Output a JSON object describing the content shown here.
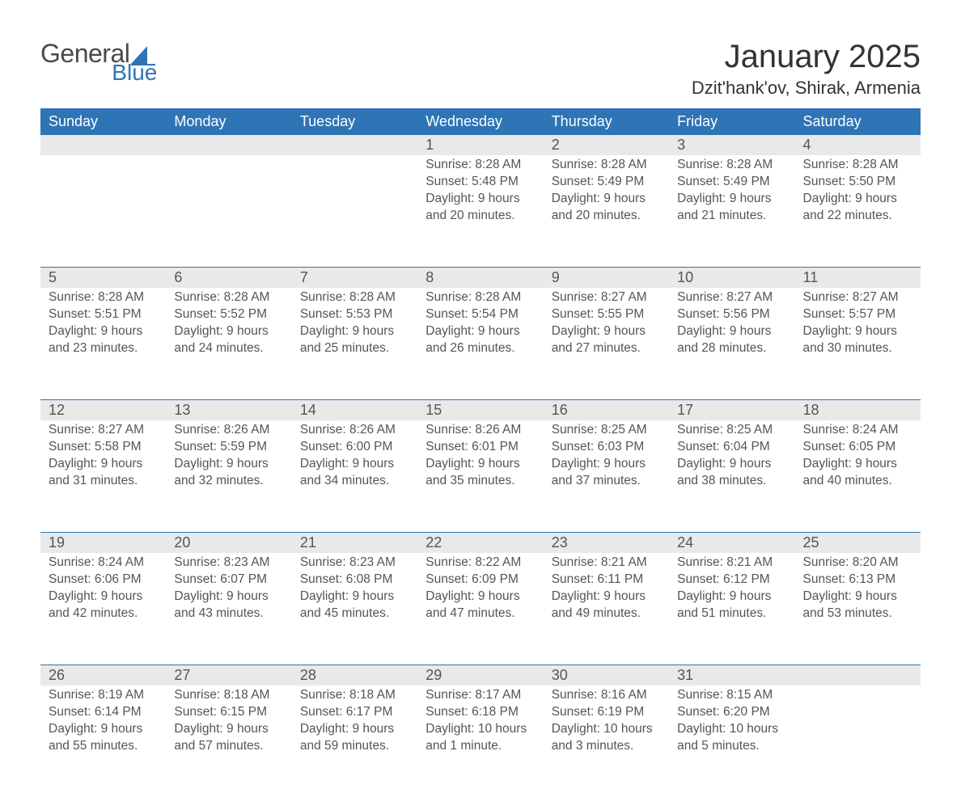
{
  "brand": {
    "text_general": "General",
    "text_blue": "Blue",
    "general_color": "#4a4a4a",
    "blue_color": "#2f74b5",
    "accent_shape_color": "#2f74b5"
  },
  "title": {
    "month_year": "January 2025",
    "location": "Dzit'hank'ov, Shirak, Armenia",
    "text_color": "#333333"
  },
  "colors": {
    "header_bg": "#2f74b5",
    "header_text": "#ffffff",
    "daynum_strip_bg": "#e9e9e9",
    "daynum_text": "#555555",
    "body_text": "#555555",
    "divider": "#2f74b5",
    "page_bg": "#ffffff"
  },
  "fontsizes": {
    "month_title_pt": 30,
    "location_pt": 17,
    "weekday_pt": 14,
    "daynum_pt": 14,
    "body_pt": 12
  },
  "calendar": {
    "type": "table",
    "weekdays": [
      "Sunday",
      "Monday",
      "Tuesday",
      "Wednesday",
      "Thursday",
      "Friday",
      "Saturday"
    ],
    "weeks": [
      [
        {
          "n": ""
        },
        {
          "n": ""
        },
        {
          "n": ""
        },
        {
          "n": "1",
          "sunrise": "Sunrise: 8:28 AM",
          "sunset": "Sunset: 5:48 PM",
          "day1": "Daylight: 9 hours",
          "day2": "and 20 minutes."
        },
        {
          "n": "2",
          "sunrise": "Sunrise: 8:28 AM",
          "sunset": "Sunset: 5:49 PM",
          "day1": "Daylight: 9 hours",
          "day2": "and 20 minutes."
        },
        {
          "n": "3",
          "sunrise": "Sunrise: 8:28 AM",
          "sunset": "Sunset: 5:49 PM",
          "day1": "Daylight: 9 hours",
          "day2": "and 21 minutes."
        },
        {
          "n": "4",
          "sunrise": "Sunrise: 8:28 AM",
          "sunset": "Sunset: 5:50 PM",
          "day1": "Daylight: 9 hours",
          "day2": "and 22 minutes."
        }
      ],
      [
        {
          "n": "5",
          "sunrise": "Sunrise: 8:28 AM",
          "sunset": "Sunset: 5:51 PM",
          "day1": "Daylight: 9 hours",
          "day2": "and 23 minutes."
        },
        {
          "n": "6",
          "sunrise": "Sunrise: 8:28 AM",
          "sunset": "Sunset: 5:52 PM",
          "day1": "Daylight: 9 hours",
          "day2": "and 24 minutes."
        },
        {
          "n": "7",
          "sunrise": "Sunrise: 8:28 AM",
          "sunset": "Sunset: 5:53 PM",
          "day1": "Daylight: 9 hours",
          "day2": "and 25 minutes."
        },
        {
          "n": "8",
          "sunrise": "Sunrise: 8:28 AM",
          "sunset": "Sunset: 5:54 PM",
          "day1": "Daylight: 9 hours",
          "day2": "and 26 minutes."
        },
        {
          "n": "9",
          "sunrise": "Sunrise: 8:27 AM",
          "sunset": "Sunset: 5:55 PM",
          "day1": "Daylight: 9 hours",
          "day2": "and 27 minutes."
        },
        {
          "n": "10",
          "sunrise": "Sunrise: 8:27 AM",
          "sunset": "Sunset: 5:56 PM",
          "day1": "Daylight: 9 hours",
          "day2": "and 28 minutes."
        },
        {
          "n": "11",
          "sunrise": "Sunrise: 8:27 AM",
          "sunset": "Sunset: 5:57 PM",
          "day1": "Daylight: 9 hours",
          "day2": "and 30 minutes."
        }
      ],
      [
        {
          "n": "12",
          "sunrise": "Sunrise: 8:27 AM",
          "sunset": "Sunset: 5:58 PM",
          "day1": "Daylight: 9 hours",
          "day2": "and 31 minutes."
        },
        {
          "n": "13",
          "sunrise": "Sunrise: 8:26 AM",
          "sunset": "Sunset: 5:59 PM",
          "day1": "Daylight: 9 hours",
          "day2": "and 32 minutes."
        },
        {
          "n": "14",
          "sunrise": "Sunrise: 8:26 AM",
          "sunset": "Sunset: 6:00 PM",
          "day1": "Daylight: 9 hours",
          "day2": "and 34 minutes."
        },
        {
          "n": "15",
          "sunrise": "Sunrise: 8:26 AM",
          "sunset": "Sunset: 6:01 PM",
          "day1": "Daylight: 9 hours",
          "day2": "and 35 minutes."
        },
        {
          "n": "16",
          "sunrise": "Sunrise: 8:25 AM",
          "sunset": "Sunset: 6:03 PM",
          "day1": "Daylight: 9 hours",
          "day2": "and 37 minutes."
        },
        {
          "n": "17",
          "sunrise": "Sunrise: 8:25 AM",
          "sunset": "Sunset: 6:04 PM",
          "day1": "Daylight: 9 hours",
          "day2": "and 38 minutes."
        },
        {
          "n": "18",
          "sunrise": "Sunrise: 8:24 AM",
          "sunset": "Sunset: 6:05 PM",
          "day1": "Daylight: 9 hours",
          "day2": "and 40 minutes."
        }
      ],
      [
        {
          "n": "19",
          "sunrise": "Sunrise: 8:24 AM",
          "sunset": "Sunset: 6:06 PM",
          "day1": "Daylight: 9 hours",
          "day2": "and 42 minutes."
        },
        {
          "n": "20",
          "sunrise": "Sunrise: 8:23 AM",
          "sunset": "Sunset: 6:07 PM",
          "day1": "Daylight: 9 hours",
          "day2": "and 43 minutes."
        },
        {
          "n": "21",
          "sunrise": "Sunrise: 8:23 AM",
          "sunset": "Sunset: 6:08 PM",
          "day1": "Daylight: 9 hours",
          "day2": "and 45 minutes."
        },
        {
          "n": "22",
          "sunrise": "Sunrise: 8:22 AM",
          "sunset": "Sunset: 6:09 PM",
          "day1": "Daylight: 9 hours",
          "day2": "and 47 minutes."
        },
        {
          "n": "23",
          "sunrise": "Sunrise: 8:21 AM",
          "sunset": "Sunset: 6:11 PM",
          "day1": "Daylight: 9 hours",
          "day2": "and 49 minutes."
        },
        {
          "n": "24",
          "sunrise": "Sunrise: 8:21 AM",
          "sunset": "Sunset: 6:12 PM",
          "day1": "Daylight: 9 hours",
          "day2": "and 51 minutes."
        },
        {
          "n": "25",
          "sunrise": "Sunrise: 8:20 AM",
          "sunset": "Sunset: 6:13 PM",
          "day1": "Daylight: 9 hours",
          "day2": "and 53 minutes."
        }
      ],
      [
        {
          "n": "26",
          "sunrise": "Sunrise: 8:19 AM",
          "sunset": "Sunset: 6:14 PM",
          "day1": "Daylight: 9 hours",
          "day2": "and 55 minutes."
        },
        {
          "n": "27",
          "sunrise": "Sunrise: 8:18 AM",
          "sunset": "Sunset: 6:15 PM",
          "day1": "Daylight: 9 hours",
          "day2": "and 57 minutes."
        },
        {
          "n": "28",
          "sunrise": "Sunrise: 8:18 AM",
          "sunset": "Sunset: 6:17 PM",
          "day1": "Daylight: 9 hours",
          "day2": "and 59 minutes."
        },
        {
          "n": "29",
          "sunrise": "Sunrise: 8:17 AM",
          "sunset": "Sunset: 6:18 PM",
          "day1": "Daylight: 10 hours",
          "day2": "and 1 minute."
        },
        {
          "n": "30",
          "sunrise": "Sunrise: 8:16 AM",
          "sunset": "Sunset: 6:19 PM",
          "day1": "Daylight: 10 hours",
          "day2": "and 3 minutes."
        },
        {
          "n": "31",
          "sunrise": "Sunrise: 8:15 AM",
          "sunset": "Sunset: 6:20 PM",
          "day1": "Daylight: 10 hours",
          "day2": "and 5 minutes."
        },
        {
          "n": ""
        }
      ]
    ]
  }
}
